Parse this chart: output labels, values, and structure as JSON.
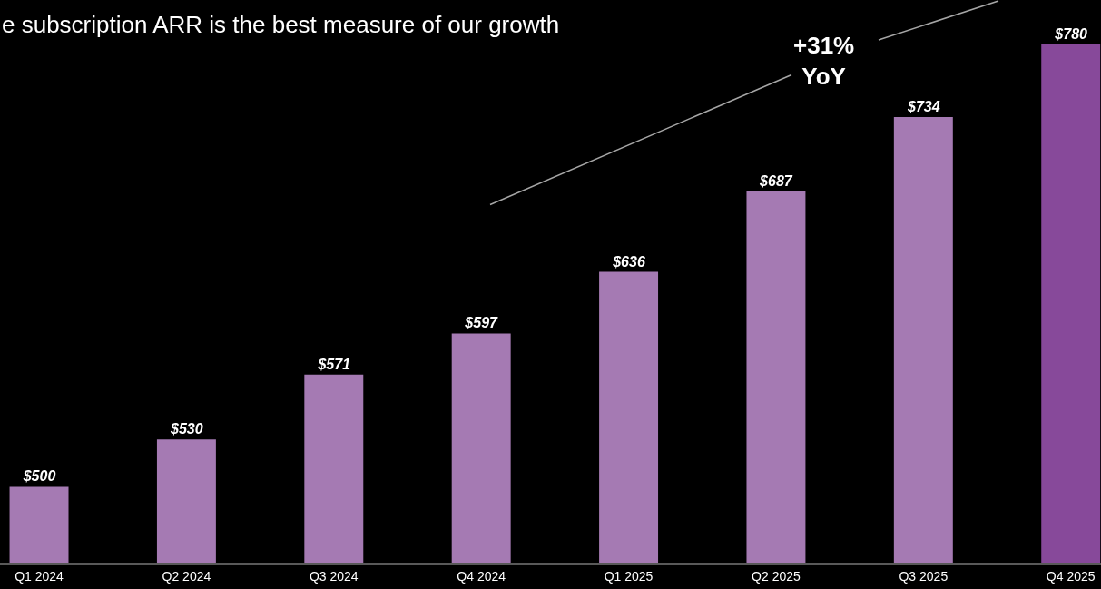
{
  "chart_data": {
    "type": "bar",
    "title": "e subscription ARR is the best measure of our growth",
    "categories": [
      "Q1 2024",
      "Q2 2024",
      "Q3 2024",
      "Q4 2024",
      "Q1 2025",
      "Q2 2025",
      "Q3 2025",
      "Q4 2025"
    ],
    "values": [
      500,
      530,
      571,
      597,
      636,
      687,
      734,
      780
    ],
    "colors": [
      "#a57ab3",
      "#a57ab3",
      "#a57ab3",
      "#a57ab3",
      "#a57ab3",
      "#a57ab3",
      "#a57ab3",
      "#87499a"
    ],
    "value_labels": [
      "$500",
      "$530",
      "$571",
      "$597",
      "$636",
      "$687",
      "$734",
      "$780"
    ],
    "ylim": [
      452,
      808
    ],
    "tick_labels": "x",
    "grid": false,
    "legend": false,
    "annotations": [
      "+31%\nYoY"
    ]
  }
}
